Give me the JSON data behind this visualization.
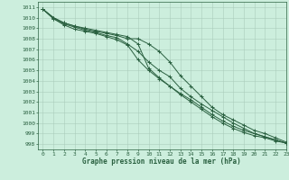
{
  "title": "Graphe pression niveau de la mer (hPa)",
  "background_color": "#cceedd",
  "grid_color": "#aaccbb",
  "line_color": "#2a6040",
  "xlim": [
    -0.5,
    23
  ],
  "ylim": [
    997.5,
    1011.5
  ],
  "yticks": [
    998,
    999,
    1000,
    1001,
    1002,
    1003,
    1004,
    1005,
    1006,
    1007,
    1008,
    1009,
    1010,
    1011
  ],
  "xticks": [
    0,
    1,
    2,
    3,
    4,
    5,
    6,
    7,
    8,
    9,
    10,
    11,
    12,
    13,
    14,
    15,
    16,
    17,
    18,
    19,
    20,
    21,
    22,
    23
  ],
  "series": [
    [
      1010.8,
      1010.0,
      1009.5,
      1009.2,
      1009.0,
      1008.8,
      1008.6,
      1008.4,
      1008.2,
      1007.5,
      1005.2,
      1004.3,
      1003.5,
      1002.8,
      1002.2,
      1001.5,
      1000.8,
      1000.2,
      999.7,
      999.3,
      999.0,
      998.7,
      998.4,
      998.1
    ],
    [
      1010.8,
      1009.9,
      1009.3,
      1008.9,
      1008.7,
      1008.5,
      1008.2,
      1007.9,
      1007.4,
      1006.0,
      1005.0,
      1004.2,
      1003.5,
      1002.7,
      1002.0,
      1001.3,
      1000.6,
      1000.0,
      999.5,
      999.1,
      998.8,
      998.6,
      998.3,
      998.1
    ],
    [
      1010.8,
      1009.9,
      1009.4,
      1009.1,
      1008.8,
      1008.6,
      1008.3,
      1008.1,
      1007.5,
      1006.8,
      1005.8,
      1005.0,
      1004.4,
      1003.3,
      1002.5,
      1001.8,
      1001.2,
      1000.6,
      1000.0,
      999.5,
      999.0,
      998.7,
      998.4,
      998.1
    ],
    [
      1010.8,
      1010.0,
      1009.5,
      1009.2,
      1008.9,
      1008.7,
      1008.5,
      1008.3,
      1008.0,
      1008.0,
      1007.5,
      1006.8,
      1005.8,
      1004.5,
      1003.5,
      1002.5,
      1001.5,
      1000.8,
      1000.3,
      999.8,
      999.3,
      999.0,
      998.6,
      998.2
    ]
  ]
}
